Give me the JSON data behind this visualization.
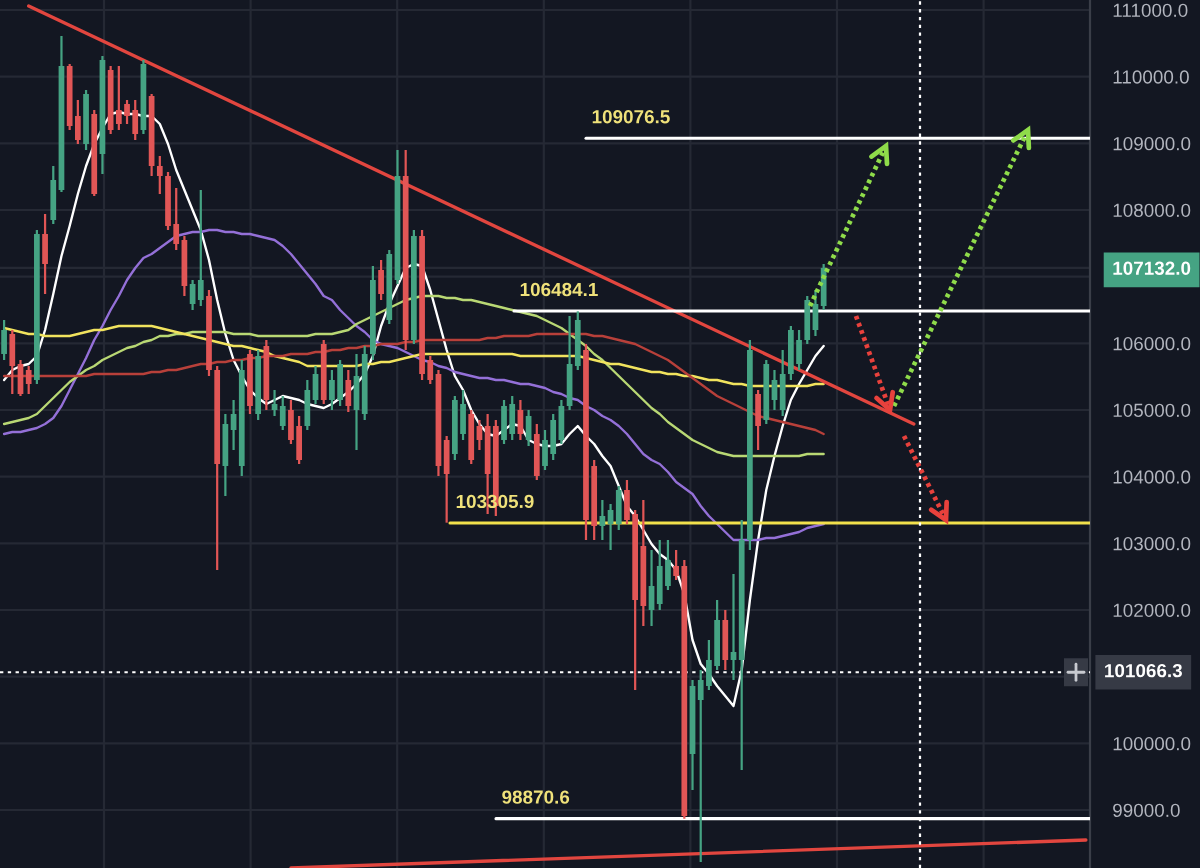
{
  "chart_data": {
    "type": "candlestick",
    "categories": [
      null,
      null,
      null,
      null,
      null,
      null,
      null,
      null,
      null,
      null,
      null,
      null,
      null,
      null,
      null,
      null,
      null,
      null,
      null,
      null,
      null,
      null,
      null,
      null,
      null,
      null,
      null,
      null,
      null,
      null,
      null,
      null,
      null,
      null,
      null,
      null,
      null,
      null,
      null,
      null,
      null,
      null,
      null,
      null,
      null,
      null,
      null,
      null,
      null,
      null,
      null,
      null,
      null,
      null,
      null,
      null,
      null,
      null,
      null,
      null,
      null,
      null,
      null,
      null,
      null,
      null,
      null,
      null,
      null,
      null,
      null,
      null,
      null,
      null,
      null,
      null,
      null,
      null,
      null,
      null,
      null,
      null,
      null,
      null,
      null,
      null,
      null,
      null,
      null,
      null,
      null,
      null,
      null,
      null,
      null,
      null,
      null,
      null,
      null,
      null,
      null,
      null,
      null,
      null,
      null,
      null,
      null,
      null,
      null,
      null,
      null,
      null,
      null,
      null,
      null,
      null,
      null,
      null,
      null,
      null,
      null,
      null,
      null,
      null,
      null,
      null,
      null,
      null,
      null,
      null,
      null,
      null,
      null
    ],
    "ohlc": [
      [
        105840,
        106350,
        105750,
        106200
      ],
      [
        106140,
        106200,
        105240,
        105660
      ],
      [
        105690,
        105750,
        105210,
        105240
      ],
      [
        105600,
        105660,
        105240,
        105390
      ],
      [
        105450,
        107700,
        105390,
        107640
      ],
      [
        107640,
        107940,
        106740,
        107190
      ],
      [
        107850,
        108660,
        107790,
        108450
      ],
      [
        108300,
        110610,
        108270,
        110160
      ],
      [
        110160,
        110190,
        109200,
        109260
      ],
      [
        109410,
        109650,
        108990,
        109050
      ],
      [
        108990,
        109800,
        108900,
        109740
      ],
      [
        109440,
        109500,
        108210,
        108240
      ],
      [
        108840,
        110310,
        108540,
        110250
      ],
      [
        110100,
        110160,
        109140,
        109200
      ],
      [
        109500,
        110160,
        109200,
        109290
      ],
      [
        109590,
        109650,
        109290,
        109410
      ],
      [
        109500,
        109650,
        109050,
        109140
      ],
      [
        109200,
        110250,
        109140,
        110190
      ],
      [
        109710,
        109740,
        108510,
        108660
      ],
      [
        108660,
        108810,
        108240,
        108510
      ],
      [
        108510,
        108570,
        107700,
        107760
      ],
      [
        107790,
        108330,
        107400,
        107490
      ],
      [
        107550,
        107610,
        106710,
        106860
      ],
      [
        106590,
        106950,
        106500,
        106890
      ],
      [
        106650,
        108300,
        106560,
        106950
      ],
      [
        106710,
        106800,
        105510,
        105600
      ],
      [
        105600,
        105660,
        102600,
        104190
      ],
      [
        104160,
        104940,
        103710,
        104790
      ],
      [
        104700,
        105150,
        104400,
        104940
      ],
      [
        104160,
        105750,
        104010,
        105600
      ],
      [
        105840,
        105900,
        104940,
        105060
      ],
      [
        104940,
        105900,
        104850,
        105810
      ],
      [
        105960,
        106050,
        105000,
        105150
      ],
      [
        105000,
        105300,
        104910,
        105090
      ],
      [
        104760,
        105210,
        104700,
        105060
      ],
      [
        105000,
        105150,
        104490,
        104550
      ],
      [
        104760,
        104910,
        104190,
        104250
      ],
      [
        104760,
        105450,
        104700,
        105300
      ],
      [
        105150,
        105660,
        105090,
        105540
      ],
      [
        105990,
        106050,
        105090,
        105150
      ],
      [
        105150,
        105600,
        105000,
        105450
      ],
      [
        105150,
        105750,
        105060,
        105690
      ],
      [
        105450,
        105600,
        104970,
        105060
      ],
      [
        105000,
        105840,
        104400,
        105510
      ],
      [
        104940,
        105960,
        104850,
        105840
      ],
      [
        105840,
        107160,
        105750,
        106950
      ],
      [
        107100,
        107250,
        106650,
        106740
      ],
      [
        106350,
        107400,
        106290,
        107340
      ],
      [
        106950,
        108900,
        106890,
        108510
      ],
      [
        108510,
        108900,
        105900,
        106050
      ],
      [
        106050,
        107700,
        105990,
        107610
      ],
      [
        107610,
        107700,
        105450,
        105540
      ],
      [
        105750,
        105810,
        105390,
        105450
      ],
      [
        105540,
        105600,
        104010,
        104160
      ],
      [
        104550,
        104610,
        103310,
        104040
      ],
      [
        104340,
        105210,
        104250,
        105150
      ],
      [
        104640,
        105300,
        104550,
        105090
      ],
      [
        104940,
        105000,
        104190,
        104250
      ],
      [
        104760,
        104850,
        104400,
        104550
      ],
      [
        104760,
        104940,
        103440,
        104040
      ],
      [
        104760,
        104850,
        103410,
        103560
      ],
      [
        104550,
        105150,
        104490,
        105060
      ],
      [
        104640,
        105210,
        104550,
        105090
      ],
      [
        105000,
        105150,
        104550,
        104640
      ],
      [
        104550,
        105000,
        104460,
        104910
      ],
      [
        104640,
        104790,
        103950,
        104010
      ],
      [
        104160,
        104700,
        104100,
        104550
      ],
      [
        104340,
        104940,
        104250,
        104850
      ],
      [
        104550,
        105150,
        104490,
        105060
      ],
      [
        105060,
        106410,
        105000,
        105690
      ],
      [
        105660,
        106480,
        105600,
        106350
      ],
      [
        105900,
        105990,
        103050,
        103350
      ],
      [
        104160,
        104250,
        103050,
        103260
      ],
      [
        103260,
        103650,
        103050,
        103410
      ],
      [
        103290,
        103590,
        102900,
        103500
      ],
      [
        103290,
        103860,
        103200,
        103800
      ],
      [
        103800,
        103950,
        103290,
        103350
      ],
      [
        103440,
        103500,
        100800,
        102150
      ],
      [
        102960,
        103650,
        101760,
        102060
      ],
      [
        102000,
        102900,
        101760,
        102360
      ],
      [
        102090,
        103050,
        102000,
        102660
      ],
      [
        102360,
        103050,
        102300,
        102750
      ],
      [
        102660,
        102900,
        102450,
        102510
      ],
      [
        102660,
        102750,
        98870,
        98910
      ],
      [
        99840,
        100950,
        99300,
        100860
      ],
      [
        100650,
        101100,
        98220,
        100950
      ],
      [
        100860,
        101550,
        100800,
        101250
      ],
      [
        101160,
        102150,
        101100,
        101850
      ],
      [
        101850,
        102000,
        101100,
        101250
      ],
      [
        101250,
        102540,
        100950,
        101370
      ],
      [
        101250,
        103350,
        99600,
        103050
      ],
      [
        103050,
        106050,
        102900,
        105900
      ],
      [
        105240,
        105300,
        104400,
        104760
      ],
      [
        104850,
        105750,
        104790,
        105690
      ],
      [
        105150,
        105600,
        105000,
        105450
      ],
      [
        105000,
        105900,
        104910,
        105540
      ],
      [
        105540,
        106260,
        105450,
        106200
      ],
      [
        105690,
        106200,
        105600,
        106050
      ],
      [
        106050,
        106710,
        105990,
        106650
      ],
      [
        106200,
        106800,
        106110,
        106590
      ],
      [
        106560,
        107190,
        106500,
        107132
      ],
      null,
      null,
      null,
      null,
      null,
      null,
      null,
      null,
      null,
      null,
      null,
      null,
      null,
      null,
      null,
      null,
      null,
      null,
      null,
      null,
      null,
      null,
      null,
      null,
      null,
      null,
      null,
      null,
      null,
      null,
      null,
      null
    ],
    "colors": [
      "#45a383",
      "#e15656",
      "#e15656",
      "#e15656",
      "#45a383",
      "#e15656",
      "#45a383",
      "#45a383",
      "#e15656",
      "#e15656",
      "#45a383",
      "#e15656",
      "#45a383",
      "#e15656",
      "#e15656",
      "#e15656",
      "#e15656",
      "#45a383",
      "#e15656",
      "#e15656",
      "#e15656",
      "#e15656",
      "#e15656",
      "#45a383",
      "#45a383",
      "#e15656",
      "#e15656",
      "#45a383",
      "#45a383",
      "#45a383",
      "#e15656",
      "#45a383",
      "#e15656",
      "#45a383",
      "#45a383",
      "#e15656",
      "#e15656",
      "#45a383",
      "#45a383",
      "#e15656",
      "#45a383",
      "#45a383",
      "#e15656",
      "#45a383",
      "#45a383",
      "#45a383",
      "#e15656",
      "#45a383",
      "#45a383",
      "#e15656",
      "#45a383",
      "#e15656",
      "#e15656",
      "#e15656",
      "#e15656",
      "#45a383",
      "#45a383",
      "#e15656",
      "#e15656",
      "#e15656",
      "#e15656",
      "#45a383",
      "#45a383",
      "#e15656",
      "#45a383",
      "#e15656",
      "#45a383",
      "#45a383",
      "#45a383",
      "#45a383",
      "#45a383",
      "#e15656",
      "#e15656",
      "#45a383",
      "#45a383",
      "#45a383",
      "#e15656",
      "#e15656",
      "#e15656",
      "#45a383",
      "#45a383",
      "#45a383",
      "#e15656",
      "#e15656",
      "#45a383",
      "#45a383",
      "#45a383",
      "#45a383",
      "#e15656",
      "#45a383",
      "#45a383",
      "#45a383",
      "#e15656",
      "#45a383",
      "#45a383",
      "#45a383",
      "#45a383",
      "#45a383",
      "#45a383",
      "#45a383",
      "#45a383",
      null,
      null,
      null,
      null,
      null,
      null,
      null,
      null,
      null,
      null,
      null,
      null,
      null,
      null,
      null,
      null,
      null,
      null,
      null,
      null,
      null,
      null,
      null,
      null,
      null,
      null,
      null,
      null,
      null,
      null,
      null,
      null
    ],
    "series": [
      {
        "type": "line",
        "color": "#ffffff",
        "values": [
          105450,
          105600,
          105660,
          105690,
          105810,
          106200,
          106740,
          107310,
          107760,
          108240,
          108660,
          108990,
          109230,
          109440,
          109470,
          109440,
          109440,
          109410,
          109410,
          109290,
          108990,
          108600,
          108300,
          108000,
          107700,
          107250,
          106650,
          106140,
          105750,
          105510,
          105300,
          105180,
          105090,
          105150,
          105210,
          105180,
          105150,
          105090,
          105060,
          105030,
          105090,
          105180,
          105270,
          105390,
          105540,
          105810,
          106260,
          106590,
          106860,
          107130,
          107190,
          107160,
          106800,
          106350,
          105900,
          105510,
          105300,
          105000,
          104790,
          104640,
          104610,
          104700,
          104790,
          104760,
          104550,
          104490,
          104460,
          104460,
          104490,
          104640,
          104760,
          104610,
          104490,
          104310,
          104160,
          103860,
          103560,
          103410,
          103200,
          102990,
          102840,
          102750,
          102600,
          102240,
          101550,
          101190,
          101040,
          100860,
          100710,
          100560,
          101100,
          102150,
          103050,
          103800,
          104310,
          104760,
          105150,
          105390,
          105600,
          105810,
          105960,
          null,
          null,
          null,
          null,
          null,
          null,
          null,
          null,
          null,
          null,
          null,
          null,
          null,
          null,
          null,
          null,
          null,
          null,
          null,
          null,
          null,
          null,
          null,
          null,
          null,
          null,
          null,
          null,
          null,
          null,
          null,
          null
        ]
      },
      {
        "type": "line",
        "color": "#9470d8",
        "values": [
          104640,
          104670,
          104670,
          104700,
          104730,
          104790,
          104880,
          105060,
          105300,
          105540,
          105780,
          106050,
          106260,
          106500,
          106710,
          106950,
          107130,
          107280,
          107340,
          107430,
          107520,
          107610,
          107640,
          107670,
          107670,
          107700,
          107700,
          107670,
          107670,
          107640,
          107640,
          107610,
          107580,
          107550,
          107460,
          107340,
          107190,
          107040,
          106890,
          106710,
          106650,
          106500,
          106380,
          106260,
          106170,
          106050,
          105990,
          105960,
          105930,
          105870,
          105810,
          105750,
          105720,
          105660,
          105630,
          105570,
          105540,
          105510,
          105480,
          105480,
          105450,
          105450,
          105420,
          105390,
          105390,
          105360,
          105330,
          105270,
          105240,
          105180,
          105150,
          105060,
          105000,
          104910,
          104850,
          104760,
          104640,
          104490,
          104340,
          104250,
          104190,
          104070,
          103920,
          103830,
          103740,
          103560,
          103410,
          103290,
          103170,
          103050,
          103050,
          103050,
          103050,
          103080,
          103080,
          103110,
          103140,
          103170,
          103230,
          103260,
          103290,
          null,
          null,
          null,
          null,
          null,
          null,
          null,
          null,
          null,
          null,
          null,
          null,
          null,
          null,
          null,
          null,
          null,
          null,
          null,
          null,
          null,
          null,
          null,
          null,
          null,
          null,
          null,
          null,
          null,
          null,
          null,
          null
        ]
      },
      {
        "type": "line",
        "color": "#b9d874",
        "values": [
          104790,
          104820,
          104850,
          104880,
          104940,
          105060,
          105180,
          105300,
          105420,
          105510,
          105600,
          105660,
          105750,
          105810,
          105870,
          105930,
          105960,
          106020,
          106050,
          106110,
          106110,
          106140,
          106140,
          106170,
          106170,
          106170,
          106170,
          106170,
          106140,
          106140,
          106140,
          106110,
          106110,
          106110,
          106110,
          106110,
          106110,
          106110,
          106140,
          106140,
          106140,
          106170,
          106200,
          106290,
          106350,
          106410,
          106470,
          106530,
          106590,
          106650,
          106680,
          106710,
          106710,
          106710,
          106680,
          106680,
          106650,
          106650,
          106620,
          106590,
          106560,
          106530,
          106500,
          106470,
          106440,
          106410,
          106350,
          106290,
          106230,
          106140,
          106050,
          105960,
          105840,
          105750,
          105630,
          105510,
          105390,
          105270,
          105150,
          105030,
          104940,
          104820,
          104730,
          104640,
          104550,
          104490,
          104430,
          104370,
          104340,
          104310,
          104310,
          104310,
          104310,
          104310,
          104310,
          104310,
          104310,
          104310,
          104340,
          104340,
          104340,
          null,
          null,
          null,
          null,
          null,
          null,
          null,
          null,
          null,
          null,
          null,
          null,
          null,
          null,
          null,
          null,
          null,
          null,
          null,
          null,
          null,
          null,
          null,
          null,
          null,
          null,
          null,
          null,
          null,
          null,
          null,
          null
        ]
      },
      {
        "type": "line",
        "color": "#f1e35e",
        "values": [
          106230,
          106200,
          106170,
          106140,
          106140,
          106110,
          106110,
          106110,
          106110,
          106140,
          106170,
          106200,
          106200,
          106230,
          106260,
          106260,
          106260,
          106260,
          106260,
          106230,
          106200,
          106170,
          106140,
          106110,
          106080,
          106050,
          106020,
          105990,
          105960,
          105960,
          105930,
          105900,
          105870,
          105810,
          105780,
          105750,
          105720,
          105660,
          105660,
          105660,
          105660,
          105660,
          105660,
          105660,
          105690,
          105690,
          105720,
          105720,
          105750,
          105780,
          105810,
          105840,
          105840,
          105840,
          105840,
          105840,
          105840,
          105840,
          105840,
          105840,
          105840,
          105840,
          105840,
          105810,
          105810,
          105810,
          105810,
          105810,
          105810,
          105810,
          105810,
          105780,
          105750,
          105720,
          105690,
          105690,
          105660,
          105630,
          105600,
          105570,
          105570,
          105540,
          105540,
          105510,
          105510,
          105480,
          105450,
          105450,
          105420,
          105390,
          105390,
          105360,
          105360,
          105360,
          105360,
          105360,
          105360,
          105360,
          105360,
          105390,
          105390,
          null,
          null,
          null,
          null,
          null,
          null,
          null,
          null,
          null,
          null,
          null,
          null,
          null,
          null,
          null,
          null,
          null,
          null,
          null,
          null,
          null,
          null,
          null,
          null,
          null,
          null,
          null,
          null,
          null,
          null,
          null,
          null
        ]
      },
      {
        "type": "line",
        "color": "#b8403a",
        "values": [
          105510,
          105510,
          105510,
          105510,
          105510,
          105510,
          105510,
          105510,
          105510,
          105510,
          105510,
          105540,
          105540,
          105540,
          105540,
          105540,
          105540,
          105540,
          105570,
          105570,
          105600,
          105600,
          105630,
          105660,
          105690,
          105690,
          105720,
          105720,
          105750,
          105750,
          105780,
          105780,
          105810,
          105810,
          105810,
          105840,
          105840,
          105840,
          105870,
          105870,
          105900,
          105900,
          105930,
          105930,
          105960,
          105960,
          105990,
          105990,
          105990,
          106020,
          106020,
          106050,
          106050,
          106050,
          106050,
          106050,
          106050,
          106050,
          106050,
          106080,
          106080,
          106110,
          106110,
          106110,
          106110,
          106140,
          106140,
          106140,
          106140,
          106140,
          106140,
          106140,
          106110,
          106110,
          106080,
          106050,
          106020,
          105990,
          105930,
          105870,
          105810,
          105750,
          105660,
          105570,
          105480,
          105390,
          105300,
          105210,
          105150,
          105090,
          105030,
          104970,
          104910,
          104880,
          104850,
          104820,
          104790,
          104760,
          104730,
          104700,
          104640,
          null,
          null,
          null,
          null,
          null,
          null,
          null,
          null,
          null,
          null,
          null,
          null,
          null,
          null,
          null,
          null,
          null,
          null,
          null,
          null,
          null,
          null,
          null,
          null,
          null,
          null,
          null,
          null,
          null,
          null,
          null,
          null
        ]
      },
      {
        "type": "line",
        "color": "#e2463f",
        "values": [
          null,
          null,
          null,
          111060,
          null,
          null,
          null,
          null,
          null,
          null,
          null,
          null,
          null,
          null,
          null,
          null,
          null,
          null,
          null,
          null,
          null,
          null,
          null,
          null,
          null,
          null,
          null,
          null,
          null,
          null,
          null,
          null,
          null,
          null,
          null,
          null,
          null,
          null,
          null,
          null,
          null,
          null,
          null,
          null,
          null,
          null,
          null,
          null,
          null,
          null,
          null,
          null,
          null,
          null,
          null,
          null,
          null,
          null,
          null,
          null,
          null,
          null,
          null,
          null,
          null,
          null,
          null,
          null,
          null,
          null,
          null,
          null,
          null,
          null,
          null,
          null,
          null,
          null,
          null,
          null,
          null,
          null,
          null,
          null,
          null,
          null,
          null,
          null,
          null,
          null,
          null,
          null,
          null,
          null,
          null,
          null,
          null,
          null,
          null,
          null,
          null,
          null,
          null,
          null,
          null,
          null,
          null,
          null,
          null,
          null,
          null,
          104790,
          null,
          null,
          null,
          null,
          null,
          null,
          null,
          null,
          null,
          null,
          null,
          null,
          null,
          null,
          null,
          null,
          null,
          null,
          null,
          null,
          null
        ]
      },
      {
        "type": "line",
        "color": "#e2463f",
        "values": [
          null,
          null,
          null,
          null,
          null,
          null,
          null,
          null,
          null,
          null,
          null,
          null,
          null,
          null,
          null,
          null,
          null,
          null,
          null,
          null,
          null,
          null,
          null,
          null,
          null,
          null,
          null,
          null,
          null,
          null,
          null,
          null,
          null,
          null,
          null,
          98130,
          null,
          null,
          null,
          null,
          null,
          null,
          null,
          null,
          null,
          null,
          null,
          null,
          null,
          null,
          null,
          null,
          null,
          null,
          null,
          null,
          null,
          null,
          null,
          null,
          null,
          null,
          null,
          null,
          null,
          null,
          null,
          null,
          null,
          null,
          null,
          null,
          null,
          null,
          null,
          null,
          null,
          null,
          null,
          null,
          null,
          null,
          null,
          null,
          null,
          null,
          null,
          null,
          null,
          null,
          null,
          null,
          null,
          null,
          null,
          null,
          null,
          null,
          null,
          null,
          null,
          null,
          null,
          null,
          null,
          null,
          null,
          null,
          null,
          null,
          null,
          null,
          null,
          null,
          null,
          null,
          null,
          null,
          null,
          null,
          null,
          null,
          null,
          null,
          null,
          null,
          null,
          null,
          null,
          null,
          null,
          null,
          98550
        ]
      }
    ],
    "ylim": [
      98130,
      111150
    ],
    "yticks": [
      {
        "value": 99000,
        "label": "99000.0"
      },
      {
        "value": 100000,
        "label": "100000.0"
      },
      {
        "value": 101000,
        "label": null
      },
      {
        "value": 102000,
        "label": "102000.0"
      },
      {
        "value": 103000,
        "label": "103000.0"
      },
      {
        "value": 104000,
        "label": "104000.0"
      },
      {
        "value": 105000,
        "label": "105000.0"
      },
      {
        "value": 106000,
        "label": "106000.0"
      },
      {
        "value": 107000,
        "label": null
      },
      {
        "value": 107132,
        "label": "107132.0"
      },
      {
        "value": 108000,
        "label": "108000.0"
      },
      {
        "value": 109000,
        "label": "109000.0"
      },
      {
        "value": 110000,
        "label": "110000.0"
      },
      {
        "value": 111000,
        "label": "111000.0"
      }
    ],
    "tick_labels": "y",
    "grid": true,
    "ref_lines": [
      {
        "axis": "y",
        "value": 109076.5,
        "label": "109076.5",
        "color": "#ffffff"
      },
      {
        "axis": "y",
        "value": 106484.1,
        "label": "106484.1",
        "color": "#ffffff"
      },
      {
        "axis": "y",
        "value": 103305.9,
        "label": "103305.9",
        "color": "#f2e14c"
      },
      {
        "axis": "y",
        "value": 98870.6,
        "label": "98870.6",
        "color": "#ffffff"
      },
      {
        "axis": "y",
        "value": 101066.3,
        "label": "101066.3",
        "color": "#ffffff",
        "line_style": "dotted"
      }
    ]
  }
}
